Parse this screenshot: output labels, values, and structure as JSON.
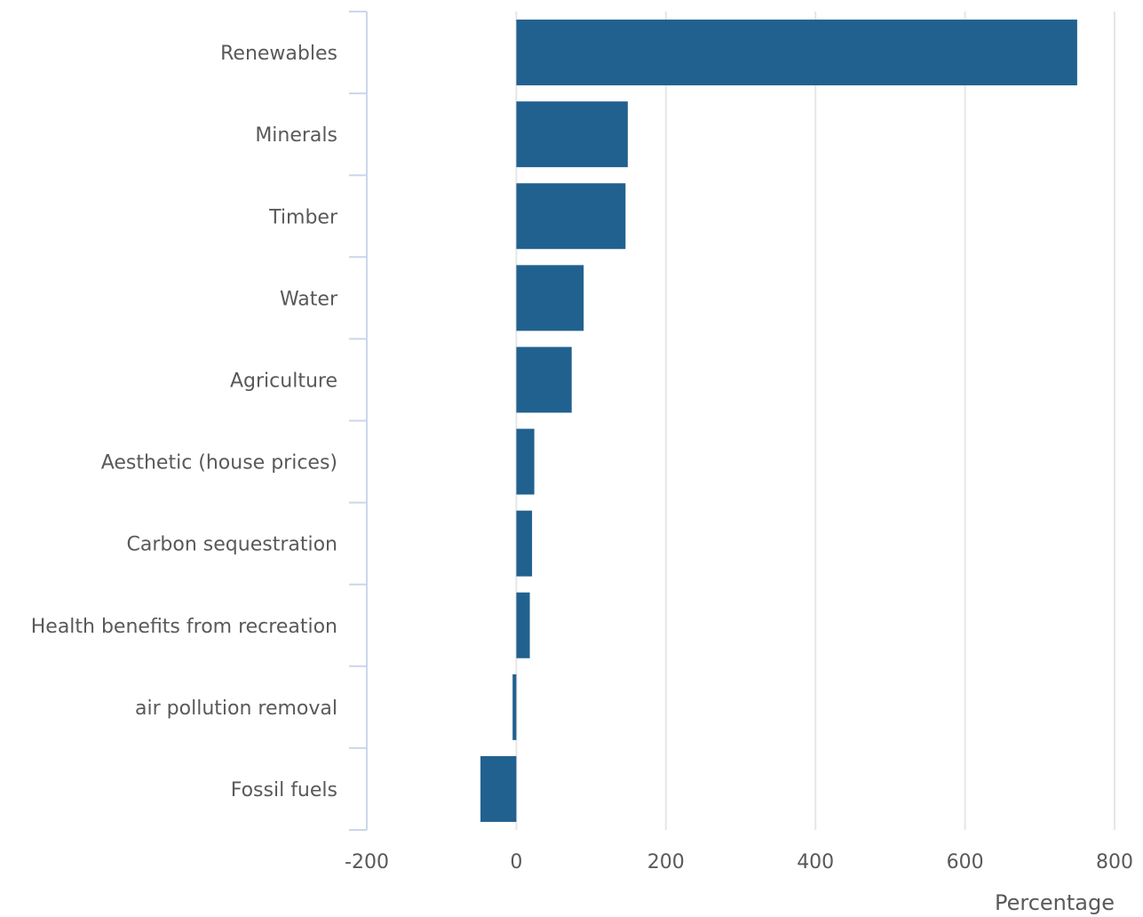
{
  "chart_data": {
    "type": "bar",
    "orientation": "horizontal",
    "categories": [
      "Renewables",
      "Minerals",
      "Timber",
      "Water",
      "Agriculture",
      "Aesthetic (house prices)",
      "Carbon sequestration",
      "Health benefits from recreation",
      "air pollution removal",
      "Fossil fuels"
    ],
    "values": [
      750,
      149,
      146,
      90,
      74,
      24,
      21,
      18,
      -5,
      -48
    ],
    "title": "",
    "xlabel": "Percentage",
    "ylabel": "",
    "xlim": [
      -200,
      800
    ],
    "xticks": [
      -200,
      0,
      200,
      400,
      600,
      800
    ],
    "xtick_labels": [
      "-200",
      "0",
      "200",
      "400",
      "600",
      "800"
    ],
    "grid": "vertical",
    "legend": "none",
    "bar_color": "#21618f",
    "grid_color": "#e6e6e6",
    "axis_color": "#ccd6eb",
    "text_color": "#595959"
  }
}
